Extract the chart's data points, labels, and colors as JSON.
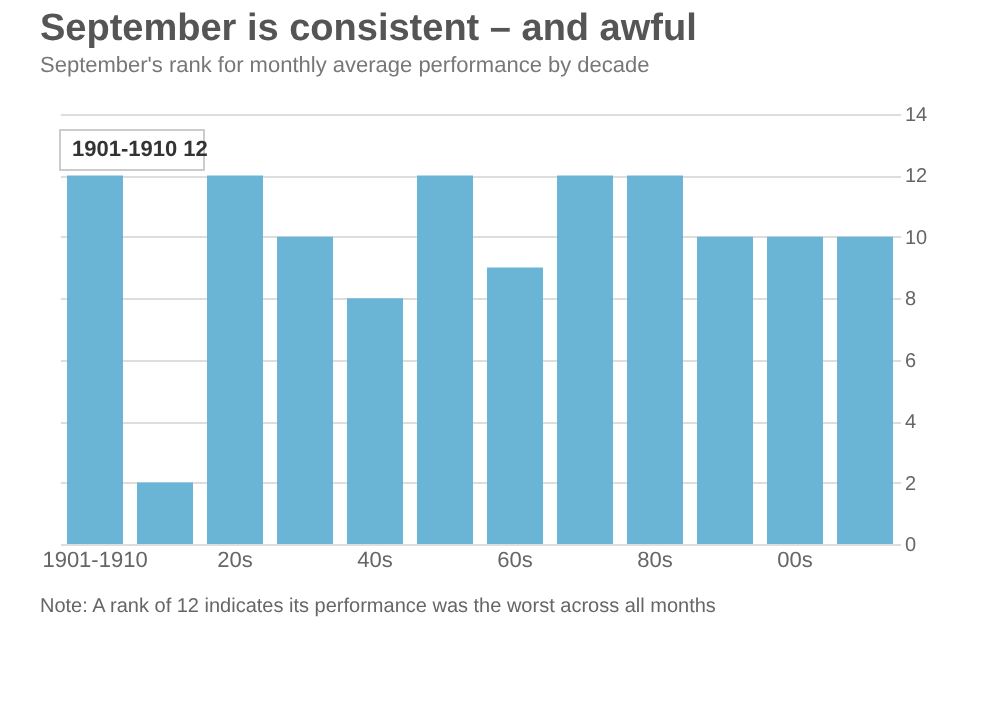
{
  "chart_data": {
    "type": "bar",
    "title": "September is consistent – and awful",
    "subtitle": "September's rank for monthly average performance by decade",
    "categories": [
      "1901-1910",
      null,
      "20s",
      null,
      "40s",
      null,
      "60s",
      null,
      "80s",
      null,
      "00s",
      null
    ],
    "values": [
      12,
      2,
      12,
      10,
      8,
      12,
      9,
      12,
      12,
      10,
      10,
      10
    ],
    "color": "#6ab4d6",
    "ylim": [
      0,
      14
    ],
    "yticks": [
      0,
      2,
      4,
      6,
      8,
      10,
      12,
      14
    ],
    "grid": "y",
    "annotations": [
      "1901-1910 12",
      "Note: A rank of 12 indicates its performance was the worst across all months"
    ]
  }
}
